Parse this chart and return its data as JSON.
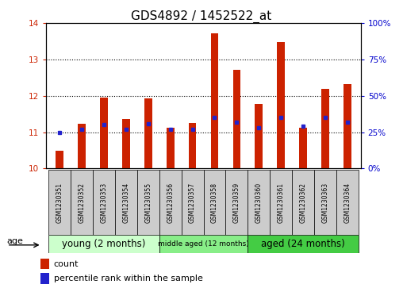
{
  "title": "GDS4892 / 1452522_at",
  "samples": [
    "GSM1230351",
    "GSM1230352",
    "GSM1230353",
    "GSM1230354",
    "GSM1230355",
    "GSM1230356",
    "GSM1230357",
    "GSM1230358",
    "GSM1230359",
    "GSM1230360",
    "GSM1230361",
    "GSM1230362",
    "GSM1230363",
    "GSM1230364"
  ],
  "count_values": [
    10.48,
    11.22,
    11.95,
    11.35,
    11.92,
    11.12,
    11.25,
    13.72,
    12.72,
    11.78,
    13.47,
    11.12,
    12.18,
    12.32
  ],
  "percentile_pct": [
    25,
    27,
    30,
    27,
    31,
    27,
    27,
    35,
    32,
    28,
    35,
    29,
    35,
    32
  ],
  "ylim_left": [
    10,
    14
  ],
  "ylim_right": [
    0,
    100
  ],
  "yticks_left": [
    10,
    11,
    12,
    13,
    14
  ],
  "yticks_right": [
    0,
    25,
    50,
    75,
    100
  ],
  "groups": [
    {
      "label": "young (2 months)",
      "start": 0,
      "end": 5,
      "color": "#ccffcc"
    },
    {
      "label": "middle aged (12 months)",
      "start": 5,
      "end": 9,
      "color": "#88ee88"
    },
    {
      "label": "aged (24 months)",
      "start": 9,
      "end": 14,
      "color": "#44cc44"
    }
  ],
  "bar_color": "#cc2200",
  "percentile_color": "#2222cc",
  "bar_width": 0.35,
  "background_color": "#ffffff",
  "grid_color": "#000000",
  "title_fontsize": 11,
  "tick_fontsize": 7.5,
  "left_tick_color": "#cc2200",
  "right_tick_color": "#0000cc",
  "cell_color": "#cccccc",
  "legend_count_label": "count",
  "legend_pct_label": "percentile rank within the sample",
  "age_label": "age"
}
